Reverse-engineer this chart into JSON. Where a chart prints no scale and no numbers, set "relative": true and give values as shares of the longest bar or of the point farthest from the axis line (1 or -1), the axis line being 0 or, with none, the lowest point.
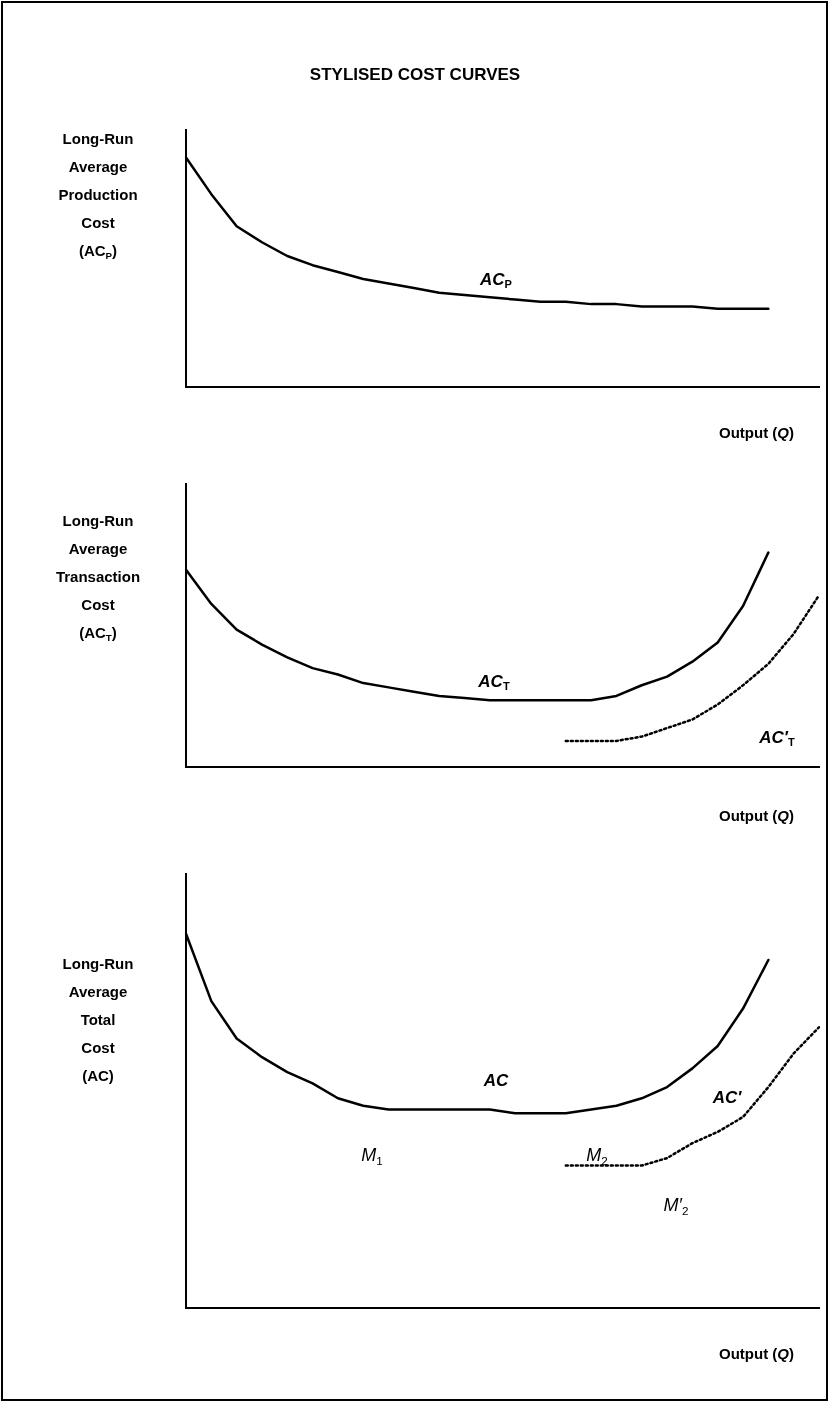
{
  "chart_data": [
    {
      "type": "line",
      "title": "STYLISED COST CURVES",
      "relative": true,
      "ylabel": "Long-Run\nAverage\nProduction\nCost\n(AC$_{P}$)",
      "xlabel": "Output (Q)",
      "categories": [
        null,
        null,
        null,
        null,
        null,
        null,
        null,
        null,
        null,
        null,
        null,
        null,
        null,
        null,
        null,
        null,
        null,
        null,
        null,
        null,
        null,
        null,
        null,
        null,
        null,
        null
      ],
      "series": [
        {
          "name": "AC$_{P}$",
          "color": "#000000",
          "values": [
            1.0,
            0.84,
            0.7,
            0.63,
            0.57,
            0.53,
            0.5,
            0.47,
            0.45,
            0.43,
            0.41,
            0.4,
            0.39,
            0.38,
            0.37,
            0.37,
            0.36,
            0.36,
            0.35,
            0.35,
            0.35,
            0.34,
            0.34,
            0.34,
            null,
            null
          ]
        }
      ]
    },
    {
      "type": "line",
      "relative": true,
      "ylabel": "Long-Run\nAverage\nTransaction\nCost\n(AC$_{T}$)",
      "xlabel": "Output (Q)",
      "categories": [
        null,
        null,
        null,
        null,
        null,
        null,
        null,
        null,
        null,
        null,
        null,
        null,
        null,
        null,
        null,
        null,
        null,
        null,
        null,
        null,
        null,
        null,
        null,
        null,
        null,
        null
      ],
      "series": [
        {
          "name": "AC$_{T}$",
          "color": "#000000",
          "values": [
            0.92,
            0.76,
            0.64,
            0.57,
            0.51,
            0.46,
            0.43,
            0.39,
            0.37,
            0.35,
            0.33,
            0.32,
            0.31,
            0.31,
            0.31,
            0.31,
            0.31,
            0.33,
            0.38,
            0.42,
            0.49,
            0.58,
            0.75,
            1.0,
            null,
            null
          ]
        },
        {
          "name": "AC′$_{T}$",
          "color": "#000000",
          "line_style": "dotted",
          "values": [
            null,
            null,
            null,
            null,
            null,
            null,
            null,
            null,
            null,
            null,
            null,
            null,
            null,
            null,
            null,
            0.12,
            0.12,
            0.12,
            0.14,
            0.18,
            0.22,
            0.29,
            0.38,
            0.48,
            0.62,
            0.8
          ]
        }
      ]
    },
    {
      "type": "line",
      "relative": true,
      "ylabel": "Long-Run\nAverage\nTotal\nCost\n(AC)",
      "xlabel": "Output (Q)",
      "annotations": [
        "M$_{1}$",
        "M$_{2}$",
        "M′$_{2}$"
      ],
      "categories": [
        null,
        null,
        null,
        null,
        null,
        null,
        null,
        null,
        null,
        null,
        null,
        null,
        null,
        null,
        null,
        null,
        null,
        null,
        null,
        null,
        null,
        null,
        null,
        null,
        null,
        null
      ],
      "series": [
        {
          "name": "AC",
          "color": "#000000",
          "values": [
            1.0,
            0.82,
            0.72,
            0.67,
            0.63,
            0.6,
            0.56,
            0.54,
            0.53,
            0.53,
            0.53,
            0.53,
            0.53,
            0.52,
            0.52,
            0.52,
            0.53,
            0.54,
            0.56,
            0.59,
            0.64,
            0.7,
            0.8,
            0.93,
            null,
            null
          ]
        },
        {
          "name": "AC′",
          "color": "#000000",
          "line_style": "dotted",
          "values": [
            null,
            null,
            null,
            null,
            null,
            null,
            null,
            null,
            null,
            null,
            null,
            null,
            null,
            null,
            null,
            0.38,
            0.38,
            0.38,
            0.38,
            0.4,
            0.44,
            0.47,
            0.51,
            0.59,
            0.68,
            0.75
          ]
        }
      ]
    }
  ]
}
